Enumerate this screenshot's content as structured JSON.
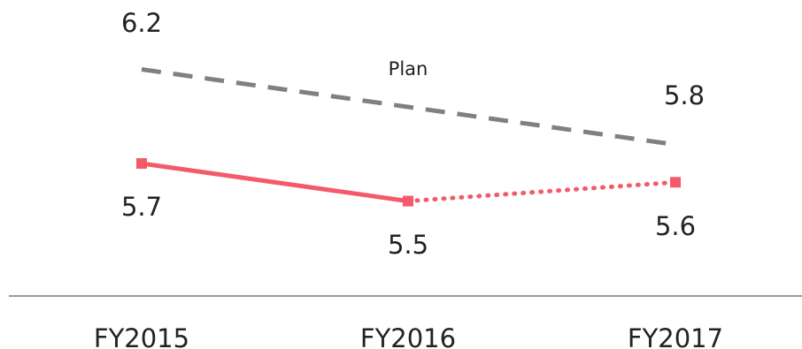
{
  "chart_data": {
    "type": "line",
    "categories": [
      "FY2015",
      "FY2016",
      "FY2017"
    ],
    "ylim": [
      5.3,
      6.3
    ],
    "grid": false,
    "series": [
      {
        "name": "Plan",
        "values": [
          6.2,
          null,
          5.8
        ],
        "data_labels": [
          "6.2",
          "",
          "5.8"
        ],
        "color": "#808080",
        "style": "dashed",
        "markers": false
      },
      {
        "name": "",
        "values": [
          5.7,
          5.5,
          5.6
        ],
        "data_labels": [
          "5.7",
          "5.5",
          "5.6"
        ],
        "color": "#F45B69",
        "segment_styles": [
          "solid",
          "dotted"
        ],
        "markers": true
      }
    ]
  }
}
